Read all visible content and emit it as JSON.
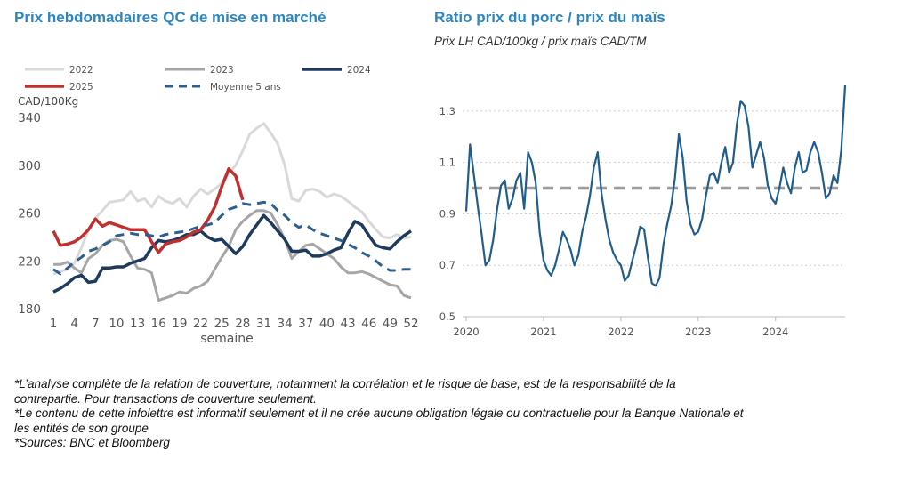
{
  "left_chart": {
    "title": "Prix hebdomadaires QC de mise en marché"
  },
  "right_chart": {
    "title": "Ratio prix du porc / prix du maïs",
    "subtitle": "Prix LH CAD/100kg / prix maïs CAD/TM"
  },
  "footnotes": [
    "*L’analyse complète de la relation de couverture, notamment la corrélation et le risque de base, est de la responsabilité de la contrepartie. Pour transactions de couverture seulement.",
    "*Le contenu de cette infolettre est informatif seulement et il ne crée aucune obligation légale ou contractuelle pour la Banque Nationale et les entités de son groupe",
    "*Sources: BNC et Bloomberg"
  ],
  "chart_data": [
    {
      "type": "line",
      "title": "Prix hebdomadaires QC de mise en marché",
      "xlabel": "semaine",
      "ylabel": "CAD/100Kg",
      "xlim": [
        1,
        52
      ],
      "ylim": [
        180,
        340
      ],
      "xticks": [
        "1",
        "4",
        "7",
        "10",
        "13",
        "16",
        "19",
        "22",
        "25",
        "28",
        "31",
        "34",
        "37",
        "40",
        "43",
        "46",
        "49",
        "52"
      ],
      "yticks": [
        "180",
        "220",
        "260",
        "300",
        "340"
      ],
      "legend_position": "top",
      "grid": false,
      "series": [
        {
          "name": "2022",
          "color": "#d9d9d9",
          "dash": "solid",
          "width": 3,
          "x": [
            1,
            2,
            3,
            4,
            5,
            6,
            7,
            8,
            9,
            10,
            11,
            12,
            13,
            14,
            15,
            16,
            17,
            18,
            19,
            20,
            21,
            22,
            23,
            24,
            25,
            26,
            27,
            28,
            29,
            30,
            31,
            32,
            33,
            34,
            35,
            36,
            37,
            38,
            39,
            40,
            41,
            42,
            43,
            44,
            45,
            46,
            47,
            48,
            49,
            50,
            51,
            52
          ],
          "values": [
            209,
            211,
            213,
            218,
            231,
            246,
            256,
            262,
            269,
            270,
            271,
            278,
            270,
            272,
            265,
            274,
            270,
            268,
            272,
            265,
            274,
            280,
            276,
            280,
            285,
            293,
            300,
            312,
            326,
            331,
            335,
            327,
            318,
            300,
            272,
            270,
            279,
            280,
            278,
            273,
            276,
            274,
            270,
            265,
            261,
            253,
            246,
            240,
            239,
            242,
            239,
            240
          ]
        },
        {
          "name": "2023",
          "color": "#a6a6a6",
          "dash": "solid",
          "width": 3,
          "x": [
            1,
            2,
            3,
            4,
            5,
            6,
            7,
            8,
            9,
            10,
            11,
            12,
            13,
            14,
            15,
            16,
            17,
            18,
            19,
            20,
            21,
            22,
            23,
            24,
            25,
            26,
            27,
            28,
            29,
            30,
            31,
            32,
            33,
            34,
            35,
            36,
            37,
            38,
            39,
            40,
            41,
            42,
            43,
            44,
            45,
            46,
            47,
            48,
            49,
            50,
            51,
            52
          ],
          "values": [
            217,
            217,
            219,
            214,
            210,
            222,
            226,
            233,
            237,
            238,
            236,
            224,
            214,
            213,
            210,
            187,
            189,
            191,
            194,
            193,
            197,
            199,
            203,
            213,
            223,
            232,
            246,
            253,
            258,
            262,
            262,
            260,
            250,
            238,
            222,
            228,
            233,
            234,
            230,
            226,
            222,
            215,
            210,
            210,
            211,
            209,
            206,
            203,
            200,
            199,
            191,
            189
          ]
        },
        {
          "name": "2024",
          "color": "#1f3b5c",
          "dash": "solid",
          "width": 3.5,
          "x": [
            1,
            2,
            3,
            4,
            5,
            6,
            7,
            8,
            9,
            10,
            11,
            12,
            13,
            14,
            15,
            16,
            17,
            18,
            19,
            20,
            21,
            22,
            23,
            24,
            25,
            26,
            27,
            28,
            29,
            30,
            31,
            32,
            33,
            34,
            35,
            36,
            37,
            38,
            39,
            40,
            41,
            42,
            43,
            44,
            45,
            46,
            47,
            48,
            49,
            50,
            51,
            52
          ],
          "values": [
            194,
            197,
            201,
            206,
            208,
            202,
            203,
            214,
            214,
            215,
            215,
            218,
            220,
            222,
            231,
            237,
            236,
            237,
            239,
            242,
            242,
            245,
            240,
            237,
            238,
            232,
            226,
            232,
            242,
            250,
            258,
            252,
            245,
            238,
            228,
            228,
            229,
            224,
            224,
            226,
            229,
            231,
            243,
            253,
            250,
            241,
            233,
            231,
            230,
            236,
            241,
            245
          ]
        },
        {
          "name": "2025",
          "color": "#c0302e",
          "dash": "solid",
          "width": 3.5,
          "x": [
            1,
            2,
            3,
            4,
            5,
            6,
            7,
            8,
            9,
            10,
            11,
            12,
            13,
            14,
            15,
            16,
            17,
            18,
            19,
            20,
            21,
            22,
            23,
            24,
            25,
            26,
            27,
            28
          ],
          "values": [
            245,
            233,
            234,
            236,
            240,
            246,
            255,
            249,
            252,
            250,
            248,
            246,
            246,
            246,
            236,
            227,
            234,
            236,
            237,
            240,
            244,
            246,
            254,
            265,
            282,
            297,
            291,
            271
          ]
        },
        {
          "name": "Moyenne 5 ans",
          "color": "#2f5f8f",
          "dash": "dashed",
          "width": 3,
          "x": [
            1,
            2,
            3,
            4,
            5,
            6,
            7,
            8,
            9,
            10,
            11,
            12,
            13,
            14,
            15,
            16,
            17,
            18,
            19,
            20,
            21,
            22,
            23,
            24,
            25,
            26,
            27,
            28,
            29,
            30,
            31,
            32,
            33,
            34,
            35,
            36,
            37,
            38,
            39,
            40,
            41,
            42,
            43,
            44,
            45,
            46,
            47,
            48,
            49,
            50,
            51,
            52
          ],
          "values": [
            213,
            209,
            214,
            219,
            223,
            228,
            230,
            233,
            236,
            241,
            242,
            243,
            242,
            242,
            241,
            240,
            242,
            243,
            244,
            245,
            247,
            249,
            250,
            252,
            258,
            263,
            265,
            268,
            267,
            268,
            269,
            268,
            262,
            258,
            252,
            248,
            250,
            246,
            243,
            241,
            239,
            237,
            234,
            231,
            227,
            224,
            220,
            215,
            212,
            212,
            213,
            213
          ]
        }
      ]
    },
    {
      "type": "line",
      "title": "Ratio prix du porc / prix du maïs",
      "subtitle": "Prix LH CAD/100kg / prix maïs CAD/TM",
      "xlim": [
        2020.0,
        2024.9
      ],
      "ylim": [
        0.5,
        1.4
      ],
      "xticks": [
        "2020",
        "2021",
        "2022",
        "2023",
        "2024"
      ],
      "yticks": [
        "0.5",
        "0.7",
        "0.9",
        "1.1",
        "1.3"
      ],
      "grid": true,
      "reference_line": {
        "y": 1.0,
        "color": "#9e9e9e",
        "dash": "dashed"
      },
      "series": [
        {
          "color": "#1f5d8f",
          "x": [
            2020.0,
            2020.05,
            2020.1,
            2020.15,
            2020.2,
            2020.25,
            2020.3,
            2020.35,
            2020.4,
            2020.45,
            2020.5,
            2020.55,
            2020.6,
            2020.65,
            2020.7,
            2020.75,
            2020.8,
            2020.85,
            2020.9,
            2020.95,
            2021.0,
            2021.05,
            2021.1,
            2021.15,
            2021.2,
            2021.25,
            2021.3,
            2021.35,
            2021.4,
            2021.45,
            2021.5,
            2021.55,
            2021.6,
            2021.65,
            2021.7,
            2021.75,
            2021.8,
            2021.85,
            2021.9,
            2021.95,
            2022.0,
            2022.05,
            2022.1,
            2022.15,
            2022.2,
            2022.25,
            2022.3,
            2022.35,
            2022.4,
            2022.45,
            2022.5,
            2022.55,
            2022.6,
            2022.65,
            2022.7,
            2022.75,
            2022.8,
            2022.85,
            2022.9,
            2022.95,
            2023.0,
            2023.05,
            2023.1,
            2023.15,
            2023.2,
            2023.25,
            2023.3,
            2023.35,
            2023.4,
            2023.45,
            2023.5,
            2023.55,
            2023.6,
            2023.65,
            2023.7,
            2023.75,
            2023.8,
            2023.85,
            2023.9,
            2023.95,
            2024.0,
            2024.05,
            2024.1,
            2024.15,
            2024.2,
            2024.25,
            2024.3,
            2024.35,
            2024.4,
            2024.45,
            2024.5,
            2024.55,
            2024.6,
            2024.65,
            2024.7,
            2024.75,
            2024.8,
            2024.85,
            2024.9
          ],
          "values": [
            0.91,
            1.17,
            1.05,
            0.93,
            0.82,
            0.7,
            0.72,
            0.8,
            0.92,
            1.01,
            1.03,
            0.92,
            0.96,
            1.03,
            1.06,
            0.92,
            1.14,
            1.1,
            1.02,
            0.83,
            0.72,
            0.68,
            0.66,
            0.7,
            0.76,
            0.83,
            0.8,
            0.76,
            0.7,
            0.74,
            0.83,
            0.89,
            0.97,
            1.08,
            1.14,
            0.98,
            0.88,
            0.8,
            0.75,
            0.72,
            0.7,
            0.64,
            0.66,
            0.72,
            0.78,
            0.85,
            0.84,
            0.73,
            0.63,
            0.62,
            0.65,
            0.78,
            0.86,
            0.93,
            1.04,
            1.21,
            1.12,
            0.95,
            0.86,
            0.82,
            0.83,
            0.88,
            0.97,
            1.05,
            1.06,
            1.02,
            1.1,
            1.16,
            1.06,
            1.1,
            1.25,
            1.34,
            1.32,
            1.24,
            1.08,
            1.13,
            1.18,
            1.12,
            1.01,
            0.96,
            0.94,
            1.0,
            1.08,
            1.02,
            0.98,
            1.08,
            1.14,
            1.06,
            1.07,
            1.14,
            1.18,
            1.14,
            1.06,
            0.96,
            0.98,
            1.05,
            1.02,
            1.15,
            1.4
          ]
        }
      ]
    }
  ]
}
